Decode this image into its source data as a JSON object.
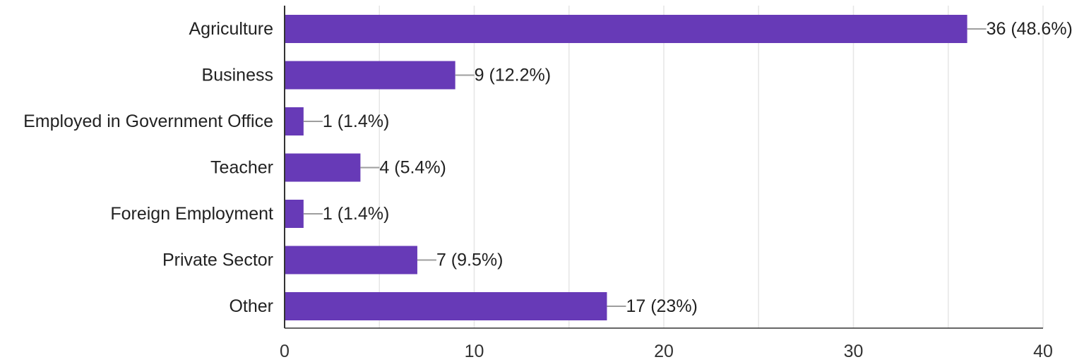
{
  "chart_data": {
    "type": "bar",
    "orientation": "horizontal",
    "categories": [
      "Agriculture",
      "Business",
      "Employed in Government Office",
      "Teacher",
      "Foreign Employment",
      "Private Sector",
      "Other"
    ],
    "values": [
      36,
      9,
      1,
      4,
      1,
      7,
      17
    ],
    "data_labels": [
      "36 (48.6%)",
      "9 (12.2%)",
      "1 (1.4%)",
      "4 (5.4%)",
      "1 (1.4%)",
      "7 (9.5%)",
      "17 (23%)"
    ],
    "title": "",
    "xlabel": "",
    "ylabel": "",
    "xlim": [
      0,
      40
    ],
    "x_ticks": [
      0,
      10,
      20,
      30,
      40
    ],
    "x_tick_labels": [
      "0",
      "10",
      "20",
      "30",
      "40"
    ],
    "grid": "vertical",
    "legend": "none",
    "colors": {
      "bar": "#673AB7",
      "gridline": "#E6E6E6",
      "axis": "#333333",
      "leader_line": "#9E9E9E",
      "text": "#222222"
    }
  }
}
